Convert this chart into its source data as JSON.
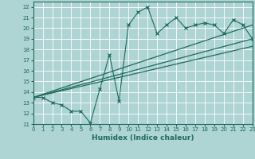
{
  "title": "",
  "xlabel": "Humidex (Indice chaleur)",
  "xlim": [
    0,
    23
  ],
  "ylim": [
    11,
    22.5
  ],
  "xticks": [
    0,
    1,
    2,
    3,
    4,
    5,
    6,
    7,
    8,
    9,
    10,
    11,
    12,
    13,
    14,
    15,
    16,
    17,
    18,
    19,
    20,
    21,
    22,
    23
  ],
  "yticks": [
    11,
    12,
    13,
    14,
    15,
    16,
    17,
    18,
    19,
    20,
    21,
    22
  ],
  "bg_color": "#aed4d4",
  "line_color": "#1e6b5e",
  "grid_color": "#ffffff",
  "zigzag_x": [
    0,
    1,
    2,
    3,
    4,
    5,
    6,
    7,
    8,
    9,
    10,
    11,
    12,
    13,
    14,
    15,
    16,
    17,
    18,
    19,
    20,
    21,
    22,
    23
  ],
  "zigzag_y": [
    13.5,
    13.5,
    13.0,
    12.8,
    12.2,
    12.2,
    11.1,
    14.3,
    17.5,
    13.2,
    20.3,
    21.5,
    22.0,
    19.5,
    20.3,
    21.0,
    20.0,
    20.3,
    20.5,
    20.3,
    19.5,
    20.8,
    20.3,
    19.0
  ],
  "line1_x": [
    0,
    23
  ],
  "line1_y": [
    13.5,
    20.3
  ],
  "line2_x": [
    0,
    23
  ],
  "line2_y": [
    13.5,
    19.0
  ],
  "line3_x": [
    0,
    23
  ],
  "line3_y": [
    13.5,
    18.3
  ]
}
